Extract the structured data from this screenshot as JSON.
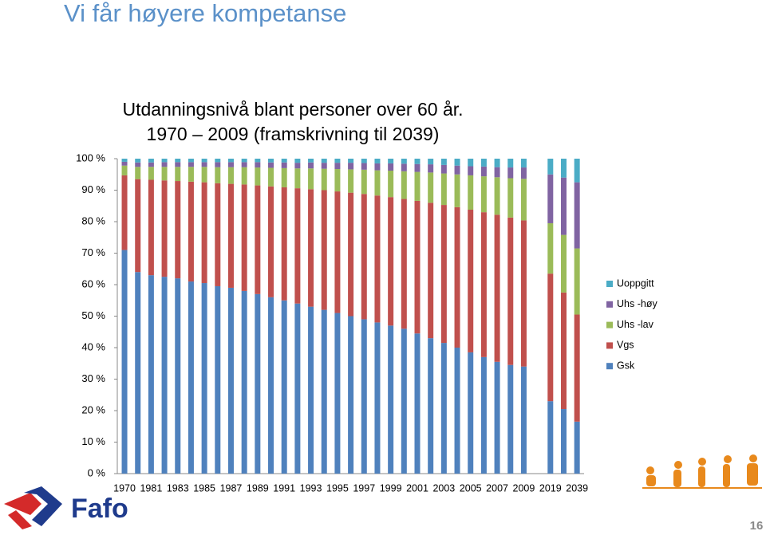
{
  "slide": {
    "title": "Vi får høyere kompetanse",
    "logo_text": "Fafo",
    "page_number": "16"
  },
  "chart_data": {
    "type": "stacked_bar",
    "title": "Utdanningsnivå blant personer over 60 år.",
    "subtitle": "1970 – 2009 (framskrivning til 2039)",
    "categories": [
      "1970",
      null,
      "1981",
      null,
      "1983",
      null,
      "1985",
      null,
      "1987",
      null,
      "1989",
      null,
      "1991",
      null,
      "1993",
      null,
      "1995",
      null,
      "1997",
      null,
      "1999",
      null,
      "2001",
      null,
      "2003",
      null,
      "2005",
      null,
      "2007",
      null,
      "2009",
      null,
      "2019",
      null,
      "2039"
    ],
    "series": [
      {
        "name": "Gsk",
        "color": "#4f81bd",
        "values": [
          71,
          64,
          63,
          62.5,
          62,
          61,
          60.5,
          59.5,
          59,
          58,
          57,
          56,
          55,
          54,
          53,
          52,
          51,
          50,
          49,
          48,
          47,
          46,
          44.5,
          43,
          41.5,
          40,
          38.5,
          37,
          35.5,
          34.5,
          34,
          null,
          23,
          20.5,
          16.5
        ]
      },
      {
        "name": "Vgs",
        "color": "#c0504d",
        "values": [
          23.7,
          29.5,
          30.3,
          30.6,
          30.9,
          31.7,
          32,
          32.7,
          33,
          33.8,
          34.5,
          35.2,
          35.9,
          36.6,
          37.3,
          38,
          38.6,
          39.2,
          39.8,
          40.3,
          40.8,
          41.2,
          42.1,
          43,
          43.8,
          44.6,
          45.3,
          46,
          46.7,
          46.8,
          46.4,
          null,
          40.5,
          37,
          34
        ]
      },
      {
        "name": "Uhs -lav",
        "color": "#9bbb59",
        "values": [
          3.1,
          3.9,
          4.1,
          4.3,
          4.5,
          4.7,
          4.9,
          5.1,
          5.3,
          5.5,
          5.7,
          5.9,
          6.1,
          6.3,
          6.6,
          6.8,
          7.1,
          7.4,
          7.7,
          8,
          8.4,
          8.8,
          9.2,
          9.6,
          10,
          10.4,
          10.9,
          11.4,
          11.9,
          12.5,
          13.2,
          null,
          16,
          18.3,
          21
        ]
      },
      {
        "name": "Uhs -høy",
        "color": "#8064a2",
        "values": [
          1.2,
          1.4,
          1.4,
          1.5,
          1.5,
          1.5,
          1.5,
          1.6,
          1.6,
          1.6,
          1.7,
          1.7,
          1.8,
          1.8,
          1.9,
          1.9,
          2,
          2.1,
          2.1,
          2.2,
          2.3,
          2.4,
          2.5,
          2.6,
          2.7,
          2.8,
          2.9,
          3.1,
          3.2,
          3.4,
          3.6,
          null,
          15.5,
          18.2,
          21
        ]
      },
      {
        "name": "Uoppgitt",
        "color": "#4bacc6",
        "values": [
          1,
          1.2,
          1.2,
          1.1,
          1.1,
          1.1,
          1.1,
          1.1,
          1.1,
          1.1,
          1.1,
          1.2,
          1.2,
          1.3,
          1.2,
          1.3,
          1.3,
          1.3,
          1.4,
          1.5,
          1.5,
          1.6,
          1.7,
          1.8,
          2,
          2.2,
          2.4,
          2.5,
          2.7,
          2.8,
          2.8,
          null,
          5,
          6,
          7.5
        ]
      }
    ],
    "ylim": [
      0,
      100
    ],
    "yticks": [
      {
        "value": 0,
        "label": "0 %"
      },
      {
        "value": 10,
        "label": "10 %"
      },
      {
        "value": 20,
        "label": "20 %"
      },
      {
        "value": 30,
        "label": "30 %"
      },
      {
        "value": 40,
        "label": "40 %"
      },
      {
        "value": 50,
        "label": "50 %"
      },
      {
        "value": 60,
        "label": "60 %"
      },
      {
        "value": 70,
        "label": "70 %"
      },
      {
        "value": 80,
        "label": "80 %"
      },
      {
        "value": 90,
        "label": "90 %"
      },
      {
        "value": 100,
        "label": "100 %"
      }
    ],
    "grid": false
  }
}
